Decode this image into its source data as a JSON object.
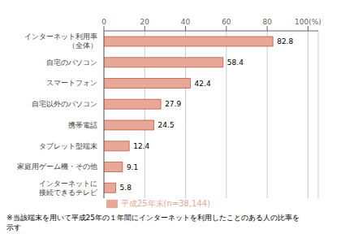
{
  "chart_data": {
    "type": "bar",
    "orientation": "horizontal",
    "categories": [
      "インターネットに\n接続できるテレビ",
      "家庭用ゲーム機・その他",
      "タブレット型端末",
      "携帯電話",
      "自宅以外のパソコン",
      "スマートフォン",
      "自宅のパソコン",
      "インターネット利用率\n（全体）"
    ],
    "series": [
      {
        "name": "平成25年末(n=38,144)",
        "color": "#e8a898",
        "values": [
          5.8,
          9.1,
          12.4,
          24.5,
          27.9,
          42.4,
          58.4,
          82.8
        ]
      }
    ],
    "xlim": [
      0,
      105
    ],
    "xticks": [
      0,
      20,
      40,
      60,
      80,
      {
        "value": 100,
        "label": "100(%)"
      }
    ],
    "grid": true,
    "data_labels": true,
    "legend": "bottom",
    "annotations": [
      "※当該端末を用いて平成25年の１年間にインターネットを利用したことのある人の比率を\n示す"
    ]
  }
}
